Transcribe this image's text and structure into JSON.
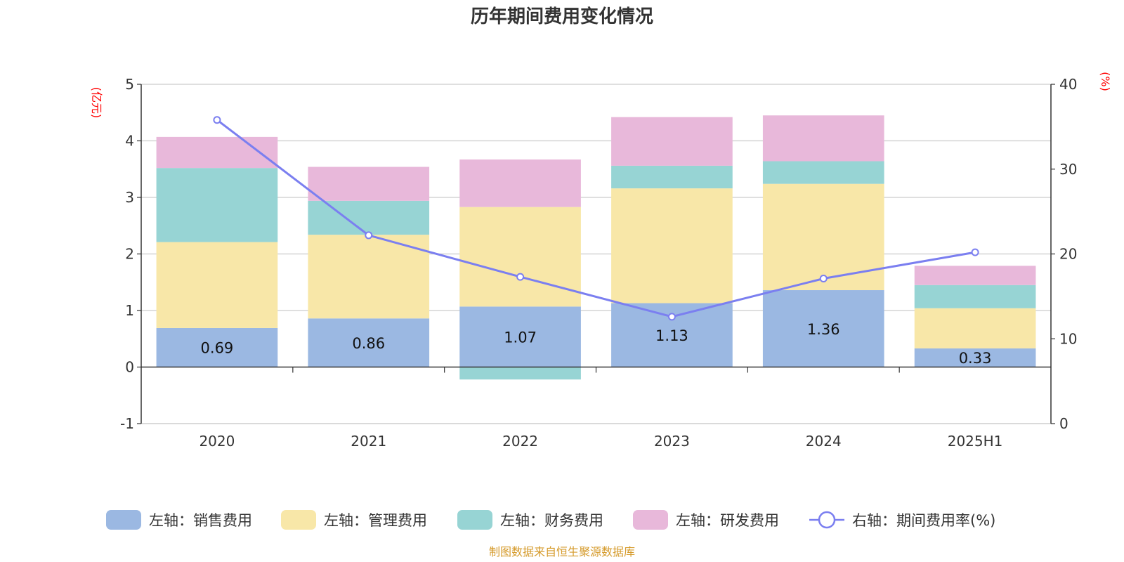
{
  "chart_data": {
    "type": "bar",
    "stacked": true,
    "title": "历年期间费用变化情况",
    "left_axis_unit": "(亿元)",
    "right_axis_unit": "(%)",
    "categories": [
      "2020",
      "2021",
      "2022",
      "2023",
      "2024",
      "2025H1"
    ],
    "left_ylim": [
      -1,
      5
    ],
    "left_ticks": [
      "-1",
      "0",
      "1",
      "2",
      "3",
      "4",
      "5"
    ],
    "right_ylim": [
      0,
      40
    ],
    "right_ticks": [
      "0",
      "10",
      "20",
      "30",
      "40"
    ],
    "grid": true,
    "legend_position": "bottom",
    "series": [
      {
        "name": "左轴：销售费用",
        "axis": "left",
        "type": "bar",
        "color": "#9bb8e2",
        "values": [
          0.69,
          0.86,
          1.07,
          1.13,
          1.36,
          0.33
        ],
        "show_labels": true
      },
      {
        "name": "左轴：管理费用",
        "axis": "left",
        "type": "bar",
        "color": "#f8e7a8",
        "values": [
          1.52,
          1.48,
          1.76,
          2.03,
          1.88,
          0.71
        ],
        "show_labels": false
      },
      {
        "name": "左轴：财务费用",
        "axis": "left",
        "type": "bar",
        "color": "#97d4d4",
        "values": [
          1.31,
          0.6,
          -0.22,
          0.4,
          0.4,
          0.41
        ],
        "show_labels": false
      },
      {
        "name": "左轴：研发费用",
        "axis": "left",
        "type": "bar",
        "color": "#e8b8da",
        "values": [
          0.55,
          0.6,
          0.84,
          0.86,
          0.81,
          0.34
        ],
        "show_labels": false
      },
      {
        "name": "右轴：期间费用率(%)",
        "axis": "right",
        "type": "line",
        "color": "#7b7ff0",
        "values": [
          35.8,
          22.2,
          17.3,
          12.6,
          17.1,
          20.2
        ],
        "show_labels": false
      }
    ],
    "data_labels": [
      "0.69",
      "0.86",
      "1.07",
      "1.13",
      "1.36",
      "0.33"
    ]
  },
  "footer": {
    "source": "制图数据来自恒生聚源数据库"
  }
}
